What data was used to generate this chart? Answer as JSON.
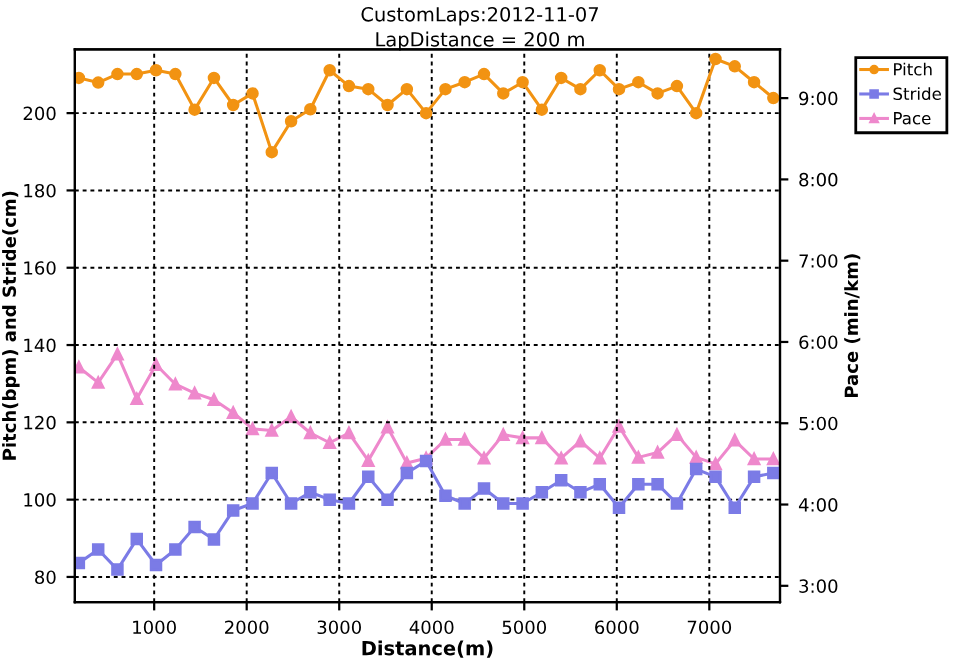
{
  "chart_data": {
    "type": "line",
    "title": "CustomLaps:2012-11-07",
    "subtitle": "LapDistance = 200 m",
    "xlabel": "Distance(m)",
    "ylabel": "Pitch(bpm) and Stride(cm)",
    "y2label": "Pace (min/km)",
    "x": [
      186,
      395,
      603,
      812,
      1020,
      1229,
      1437,
      1646,
      1854,
      2063,
      2271,
      2480,
      2688,
      2897,
      3105,
      3314,
      3522,
      3731,
      3939,
      4148,
      4356,
      4565,
      4773,
      4982,
      5190,
      5399,
      5607,
      5816,
      6024,
      6233,
      6441,
      6650,
      6858,
      7067,
      7275,
      7484,
      7692
    ],
    "series": [
      {
        "name": "Pitch",
        "color": "#f29312",
        "marker": "circle",
        "values": [
          209.1,
          207.9,
          210.1,
          210.1,
          211.1,
          210.1,
          200.9,
          209.1,
          202.1,
          205.1,
          189.9,
          197.9,
          201.0,
          211.1,
          207.0,
          206.2,
          202.1,
          206.2,
          200.0,
          206.2,
          208.0,
          210.1,
          205.1,
          208.0,
          200.9,
          209.1,
          206.2,
          211.1,
          206.2,
          208.0,
          205.1,
          207.0,
          200.0,
          214.0,
          212.1,
          208.0,
          203.9
        ]
      },
      {
        "name": "Stride",
        "color": "#7b7be6",
        "marker": "square",
        "values": [
          83.6,
          87.1,
          81.9,
          89.8,
          83.1,
          87.1,
          92.9,
          89.7,
          97.2,
          99.0,
          106.9,
          99.0,
          101.9,
          100.0,
          99.0,
          105.9,
          100.0,
          106.9,
          110.0,
          101.0,
          99.0,
          102.9,
          99.0,
          99.0,
          101.9,
          105.0,
          101.9,
          104.0,
          97.9,
          104.0,
          104.0,
          99.0,
          107.9,
          105.9,
          97.9,
          105.9,
          106.9
        ]
      },
      {
        "name": "Pace",
        "color": "#ee88cc",
        "marker": "triangle",
        "axis": "y2",
        "values": [
          5.69,
          5.5,
          5.85,
          5.3,
          5.72,
          5.48,
          5.37,
          5.29,
          5.13,
          4.93,
          4.91,
          5.08,
          4.88,
          4.76,
          4.88,
          4.54,
          4.95,
          4.51,
          4.57,
          4.8,
          4.8,
          4.57,
          4.86,
          4.82,
          4.82,
          4.57,
          4.78,
          4.57,
          4.96,
          4.58,
          4.64,
          4.86,
          4.58,
          4.5,
          4.79,
          4.56,
          4.56
        ]
      }
    ],
    "xlim": [
      143,
      7764
    ],
    "xticks": [
      1000,
      2000,
      3000,
      4000,
      5000,
      6000,
      7000
    ],
    "ylim": [
      73.5,
      216.5
    ],
    "yticks": [
      80,
      100,
      120,
      140,
      160,
      180,
      200
    ],
    "y2lim": [
      2.8,
      9.6
    ],
    "y2ticks": [
      {
        "value": 3,
        "label": "3:00"
      },
      {
        "value": 4,
        "label": "4:00"
      },
      {
        "value": 5,
        "label": "5:00"
      },
      {
        "value": 6,
        "label": "6:00"
      },
      {
        "value": 7,
        "label": "7:00"
      },
      {
        "value": 8,
        "label": "8:00"
      },
      {
        "value": 9,
        "label": "9:00"
      }
    ],
    "grid": true,
    "legend": "right",
    "line_style": "solid"
  }
}
